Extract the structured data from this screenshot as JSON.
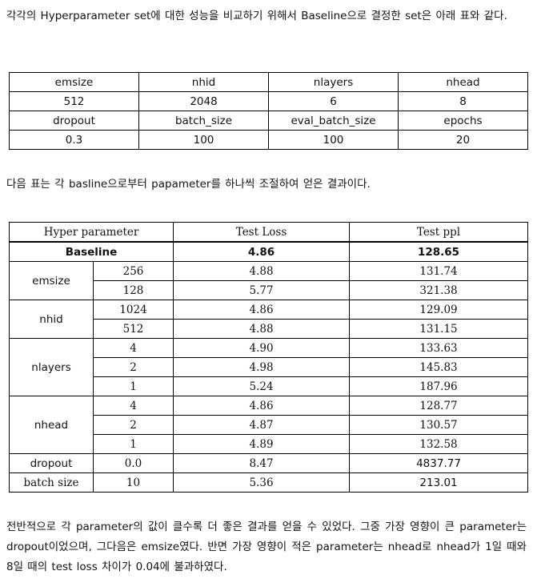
{
  "intro": "각각의 Hyperparameter set에 대한 성능을 비교하기 위해서 Baseline으로 결정한 set은 아래 표와 같다.",
  "config_table": {
    "row1_headers": [
      "emsize",
      "nhid",
      "nlayers",
      "nhead"
    ],
    "row1_values": [
      "512",
      "2048",
      "6",
      "8"
    ],
    "row2_headers": [
      "dropout",
      "batch_size",
      "eval_batch_size",
      "epochs"
    ],
    "row2_values": [
      "0.3",
      "100",
      "100",
      "20"
    ]
  },
  "mid_text": "다음 표는 각 basline으로부터 papameter를 하나씩 조절하여 얻은 결과이다.",
  "results_table": {
    "headers": [
      "Hyper parameter",
      "Test Loss",
      "Test ppl"
    ],
    "baseline": {
      "label": "Baseline",
      "loss": "4.86",
      "ppl": "128.65"
    },
    "groups": [
      {
        "name": "emsize",
        "rows": [
          {
            "value": "256",
            "loss": "4.88",
            "ppl": "131.74"
          },
          {
            "value": "128",
            "loss": "5.77",
            "ppl": "321.38"
          }
        ]
      },
      {
        "name": "nhid",
        "rows": [
          {
            "value": "1024",
            "loss": "4.86",
            "ppl": "129.09"
          },
          {
            "value": "512",
            "loss": "4.88",
            "ppl": "131.15"
          }
        ]
      },
      {
        "name": "nlayers",
        "rows": [
          {
            "value": "4",
            "loss": "4.90",
            "ppl": "133.63"
          },
          {
            "value": "2",
            "loss": "4.98",
            "ppl": "145.83"
          },
          {
            "value": "1",
            "loss": "5.24",
            "ppl": "187.96"
          }
        ]
      },
      {
        "name": "nhead",
        "rows": [
          {
            "value": "4",
            "loss": "4.86",
            "ppl": "128.77"
          },
          {
            "value": "2",
            "loss": "4.87",
            "ppl": "130.57"
          },
          {
            "value": "1",
            "loss": "4.89",
            "ppl": "132.58"
          }
        ]
      },
      {
        "name": "dropout",
        "rows": [
          {
            "value": "0.0",
            "loss": "8.47",
            "ppl": "4837.77"
          }
        ]
      },
      {
        "name": "batch size",
        "rows": [
          {
            "value": "10",
            "loss": "5.36",
            "ppl": "213.01"
          }
        ]
      }
    ]
  },
  "conclusion": "전반적으로 각 parameter의 값이 클수록 더 좋은 결과를 얻을 수 있었다. 그중 가장 영향이 큰 parameter는 dropout이었으며, 그다음은 emsize였다. 반면 가장 영향이 적은 parameter는 nhead로 nhead가 1일 때와 8일 때의 test loss 차이가 0.04에 불과하였다."
}
